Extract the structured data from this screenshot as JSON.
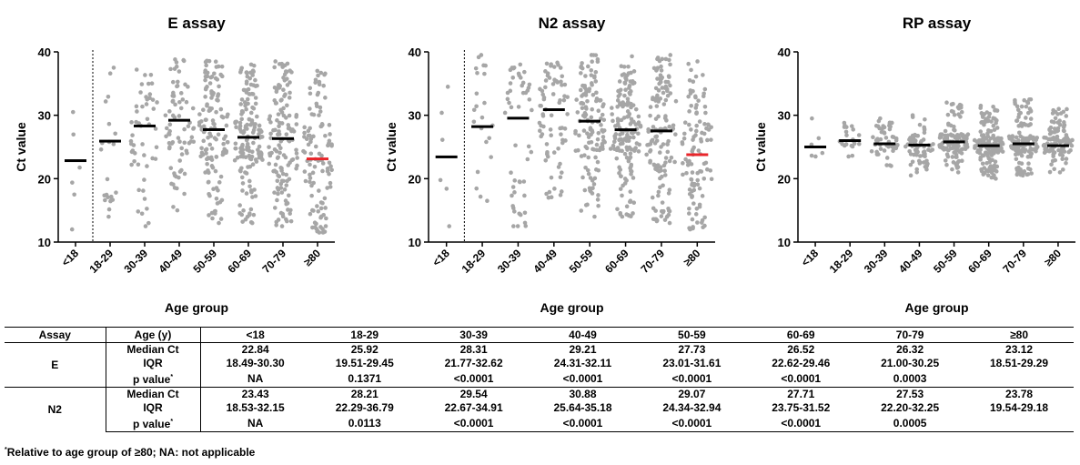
{
  "chart_data": [
    {
      "type": "scatter",
      "title": "E assay",
      "xlabel": "Age group",
      "ylabel": "Ct value",
      "ylim": [
        10,
        40
      ],
      "yticks": [
        10,
        20,
        30,
        40
      ],
      "categories": [
        "<18",
        "18-29",
        "30-39",
        "40-49",
        "50-59",
        "60-69",
        "70-79",
        "≥80"
      ],
      "medians": [
        22.84,
        25.92,
        28.31,
        29.21,
        27.73,
        26.52,
        26.32,
        23.12
      ],
      "q1": [
        18.49,
        19.51,
        21.77,
        24.31,
        23.01,
        22.62,
        21.0,
        18.51
      ],
      "q3": [
        30.3,
        29.45,
        32.62,
        32.11,
        31.61,
        29.46,
        30.25,
        29.29
      ],
      "point_ranges": [
        [
          12,
          30.5
        ],
        [
          14,
          37.5
        ],
        [
          12.5,
          37.2
        ],
        [
          15,
          38.8
        ],
        [
          13,
          38.6
        ],
        [
          13,
          38
        ],
        [
          12.5,
          38.5
        ],
        [
          11.5,
          37
        ]
      ],
      "point_counts": [
        6,
        22,
        50,
        75,
        130,
        160,
        140,
        110
      ],
      "highlight_median_category": "≥80",
      "divider_after_category": "<18",
      "point_color": "#a6a6a6",
      "median_color": "#000000",
      "highlight_color": "#e8262b"
    },
    {
      "type": "scatter",
      "title": "N2 assay",
      "xlabel": "Age group",
      "ylabel": "Ct value",
      "ylim": [
        10,
        40
      ],
      "yticks": [
        10,
        20,
        30,
        40
      ],
      "categories": [
        "<18",
        "18-29",
        "30-39",
        "40-49",
        "50-59",
        "60-69",
        "70-79",
        "≥80"
      ],
      "medians": [
        23.43,
        28.21,
        29.54,
        30.88,
        29.07,
        27.71,
        27.53,
        23.78
      ],
      "q1": [
        18.53,
        22.29,
        22.67,
        25.64,
        24.34,
        23.75,
        22.2,
        19.54
      ],
      "q3": [
        32.15,
        36.79,
        34.91,
        35.18,
        32.94,
        31.52,
        32.25,
        29.18
      ],
      "point_ranges": [
        [
          12.5,
          34.5
        ],
        [
          16.5,
          39.5
        ],
        [
          12.5,
          38
        ],
        [
          17,
          38.3
        ],
        [
          14,
          39.5
        ],
        [
          14,
          39.3
        ],
        [
          13,
          39.5
        ],
        [
          12,
          38.5
        ]
      ],
      "point_counts": [
        6,
        22,
        50,
        75,
        130,
        160,
        140,
        110
      ],
      "highlight_median_category": "≥80",
      "divider_after_category": "<18",
      "point_color": "#a6a6a6",
      "median_color": "#000000",
      "highlight_color": "#e8262b"
    },
    {
      "type": "scatter",
      "title": "RP assay",
      "xlabel": "Age group",
      "ylabel": "Ct value",
      "ylim": [
        10,
        40
      ],
      "yticks": [
        10,
        20,
        30,
        40
      ],
      "categories": [
        "<18",
        "18-29",
        "30-39",
        "40-49",
        "50-59",
        "60-69",
        "70-79",
        "≥80"
      ],
      "medians": [
        25,
        26,
        25.5,
        25.3,
        25.8,
        25.2,
        25.5,
        25.2
      ],
      "q1": [
        24,
        25,
        24.3,
        24.1,
        24.5,
        24,
        24.2,
        23.9
      ],
      "q3": [
        26,
        27,
        26.7,
        26.5,
        27,
        26.4,
        26.8,
        26.5
      ],
      "point_ranges": [
        [
          23.5,
          29.5
        ],
        [
          23.5,
          28.8
        ],
        [
          22,
          29.5
        ],
        [
          20.5,
          30
        ],
        [
          21,
          32
        ],
        [
          20,
          31.5
        ],
        [
          20.5,
          32.5
        ],
        [
          21,
          31
        ]
      ],
      "point_counts": [
        6,
        22,
        50,
        75,
        130,
        160,
        140,
        110
      ],
      "highlight_median_category": null,
      "divider_after_category": null,
      "point_color": "#a6a6a6",
      "median_color": "#000000",
      "highlight_color": "#e8262b"
    }
  ],
  "table": {
    "headers": [
      "Assay",
      "Age (y)",
      "<18",
      "18-29",
      "30-39",
      "40-49",
      "50-59",
      "60-69",
      "70-79",
      "≥80"
    ],
    "groups": [
      {
        "assay": "E",
        "rows": [
          {
            "label": "Median Ct",
            "values": [
              "22.84",
              "25.92",
              "28.31",
              "29.21",
              "27.73",
              "26.52",
              "26.32",
              "23.12"
            ]
          },
          {
            "label": "IQR",
            "values": [
              "18.49-30.30",
              "19.51-29.45",
              "21.77-32.62",
              "24.31-32.11",
              "23.01-31.61",
              "22.62-29.46",
              "21.00-30.25",
              "18.51-29.29"
            ]
          },
          {
            "label": "p value",
            "values": [
              "NA",
              "0.1371",
              "<0.0001",
              "<0.0001",
              "<0.0001",
              "<0.0001",
              "0.0003",
              ""
            ]
          }
        ]
      },
      {
        "assay": "N2",
        "rows": [
          {
            "label": "Median Ct",
            "values": [
              "23.43",
              "28.21",
              "29.54",
              "30.88",
              "29.07",
              "27.71",
              "27.53",
              "23.78"
            ]
          },
          {
            "label": "IQR",
            "values": [
              "18.53-32.15",
              "22.29-36.79",
              "22.67-34.91",
              "25.64-35.18",
              "24.34-32.94",
              "23.75-31.52",
              "22.20-32.25",
              "19.54-29.18"
            ]
          },
          {
            "label": "p value",
            "values": [
              "NA",
              "0.0113",
              "<0.0001",
              "<0.0001",
              "<0.0001",
              "<0.0001",
              "0.0005",
              ""
            ]
          }
        ]
      }
    ],
    "footnote_mark": "*",
    "footnote": "Relative to age group of ≥80; NA: not applicable"
  }
}
